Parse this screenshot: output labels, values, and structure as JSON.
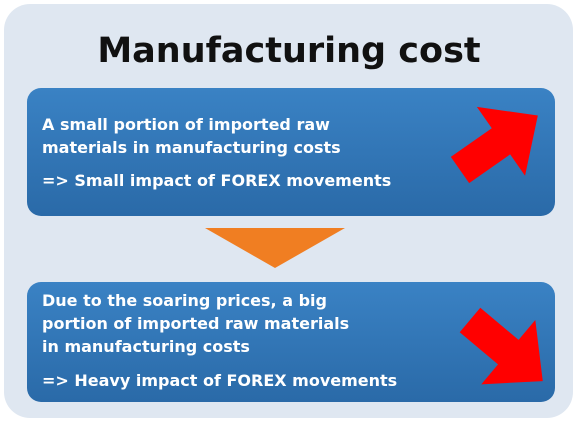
{
  "title": "Manufacturing cost",
  "boxes": [
    {
      "lines": [
        "A small portion of imported raw",
        "materials in manufacturing costs"
      ],
      "impact": "=> Small impact of FOREX movements"
    },
    {
      "lines": [
        "Due to the soaring prices, a big",
        "portion of imported raw materials",
        "in manufacturing costs"
      ],
      "impact": "=> Heavy impact of FOREX movements"
    }
  ]
}
